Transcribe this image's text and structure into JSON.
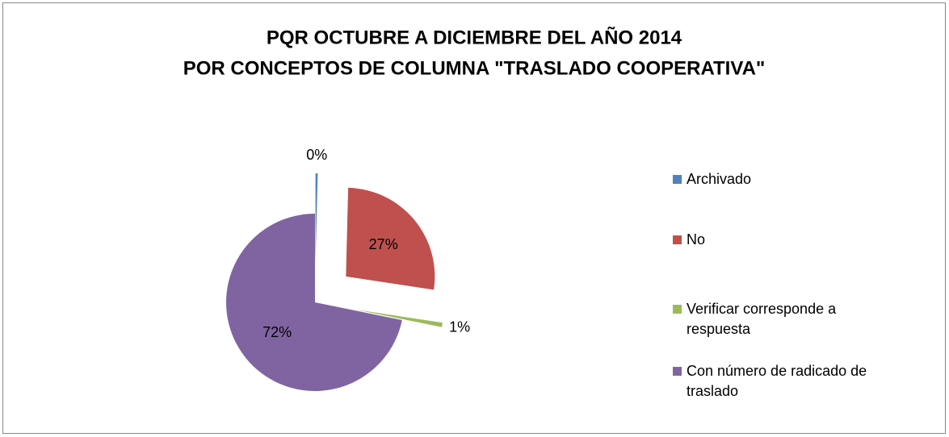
{
  "chart_data": {
    "type": "pie",
    "title": "PQR OCTUBRE A DICIEMBRE DEL AÑO 2014",
    "subtitle": "POR CONCEPTOS DE COLUMNA \"TRASLADO COOPERATIVA\"",
    "categories": [
      "Archivado",
      "No",
      "Verificar corresponde a respuesta",
      "Con número de radicado de traslado"
    ],
    "values": [
      0.4,
      27,
      0.8,
      71.8
    ],
    "value_labels": [
      "0%",
      "27%",
      "1%",
      "72%"
    ],
    "colors": [
      "#4f81bd",
      "#c0504d",
      "#9bbb59",
      "#8064a2"
    ],
    "legend": "right"
  }
}
